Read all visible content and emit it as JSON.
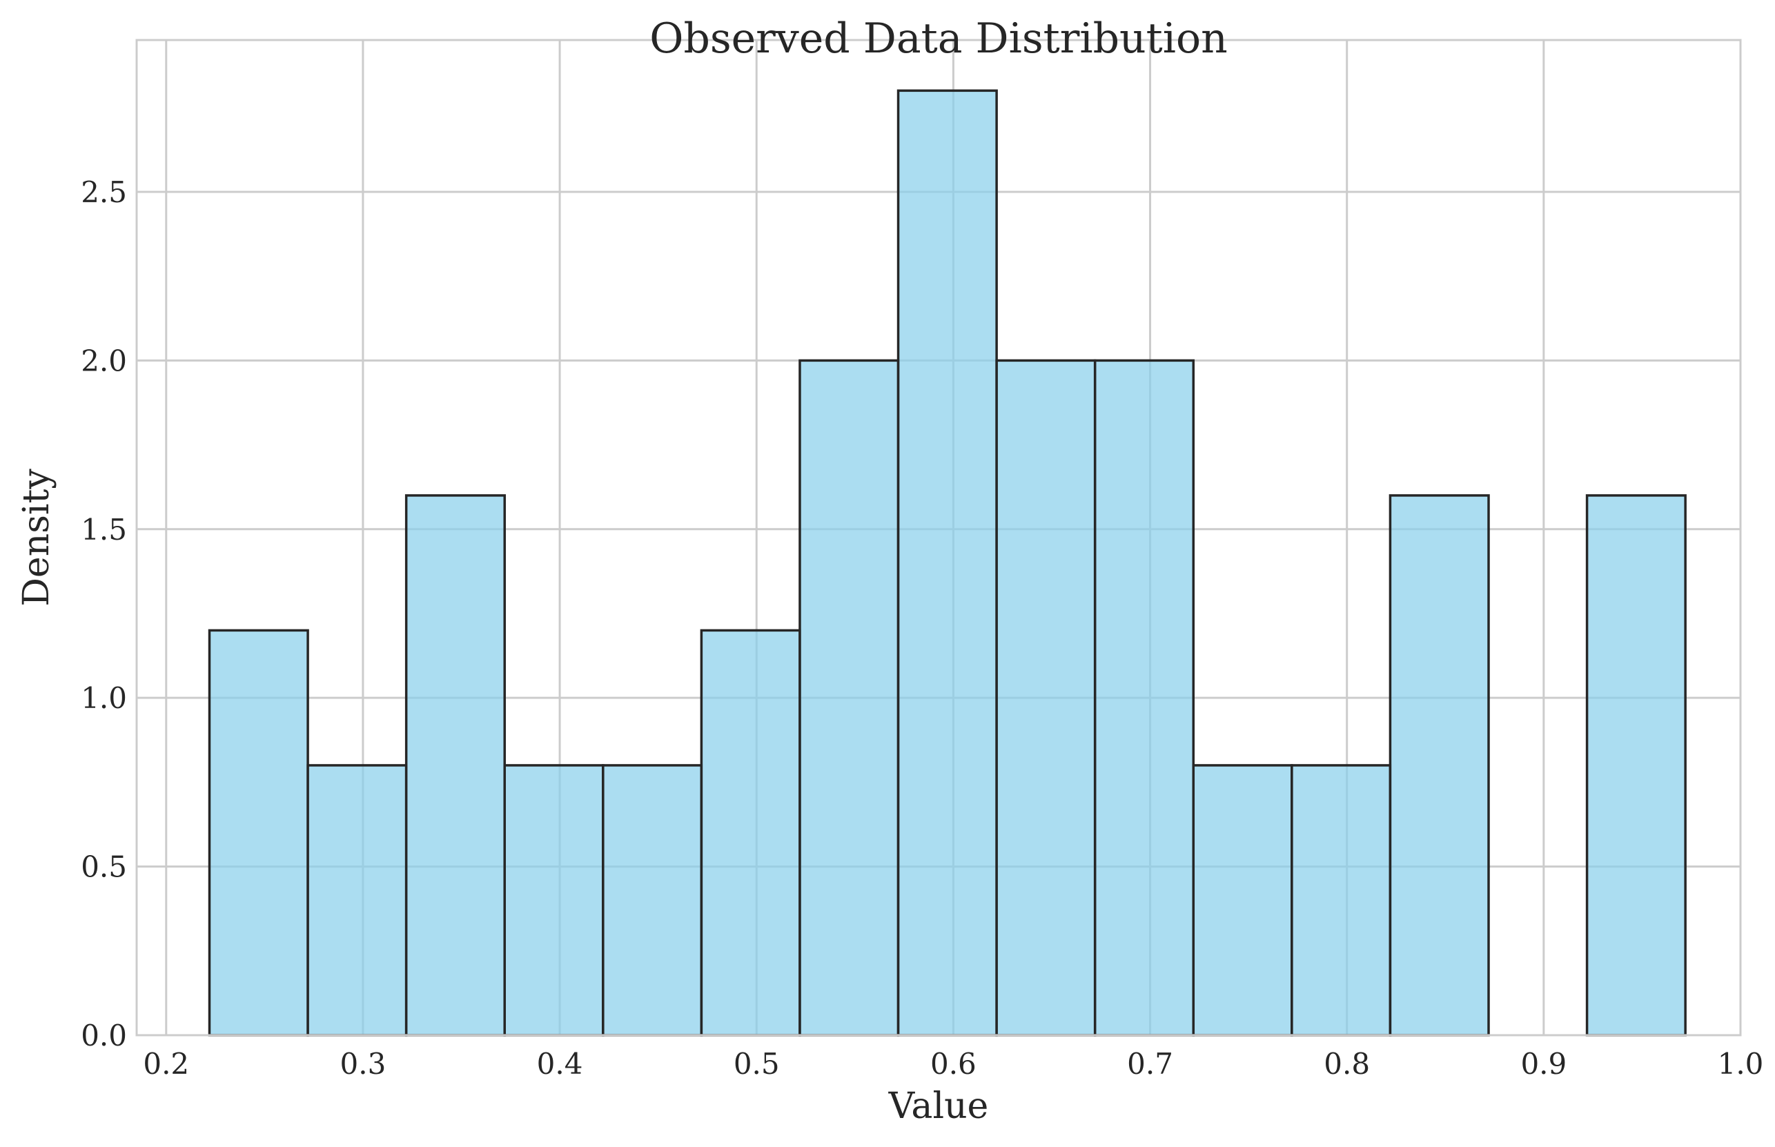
{
  "chart_data": {
    "type": "bar",
    "title": "Observed Data Distribution",
    "xlabel": "Value",
    "ylabel": "Density",
    "xlim": [
      0.185,
      1.0
    ],
    "ylim": [
      0,
      2.95
    ],
    "xticks": [
      0.2,
      0.3,
      0.4,
      0.5,
      0.6,
      0.7,
      0.8,
      0.9,
      1.0
    ],
    "xtick_labels": [
      "0.2",
      "0.3",
      "0.4",
      "0.5",
      "0.6",
      "0.7",
      "0.8",
      "0.9",
      "1.0"
    ],
    "yticks": [
      0.0,
      0.5,
      1.0,
      1.5,
      2.0,
      2.5
    ],
    "ytick_labels": [
      "0.0",
      "0.5",
      "1.0",
      "1.5",
      "2.0",
      "2.5"
    ],
    "bin_edges": [
      0.222,
      0.272,
      0.322,
      0.372,
      0.422,
      0.472,
      0.522,
      0.572,
      0.622,
      0.672,
      0.722,
      0.772,
      0.822,
      0.872,
      0.922,
      0.972
    ],
    "values": [
      1.2,
      0.8,
      1.6,
      0.8,
      0.8,
      1.2,
      2.0,
      2.8,
      2.0,
      2.0,
      0.8,
      0.8,
      1.6,
      0.0,
      1.6
    ],
    "grid": true,
    "legend": "none",
    "colors": {
      "bar_fill": "#87ceeb",
      "bar_fill_opacity": 0.7,
      "bar_edge": "#262626",
      "grid": "#cccccc"
    }
  }
}
